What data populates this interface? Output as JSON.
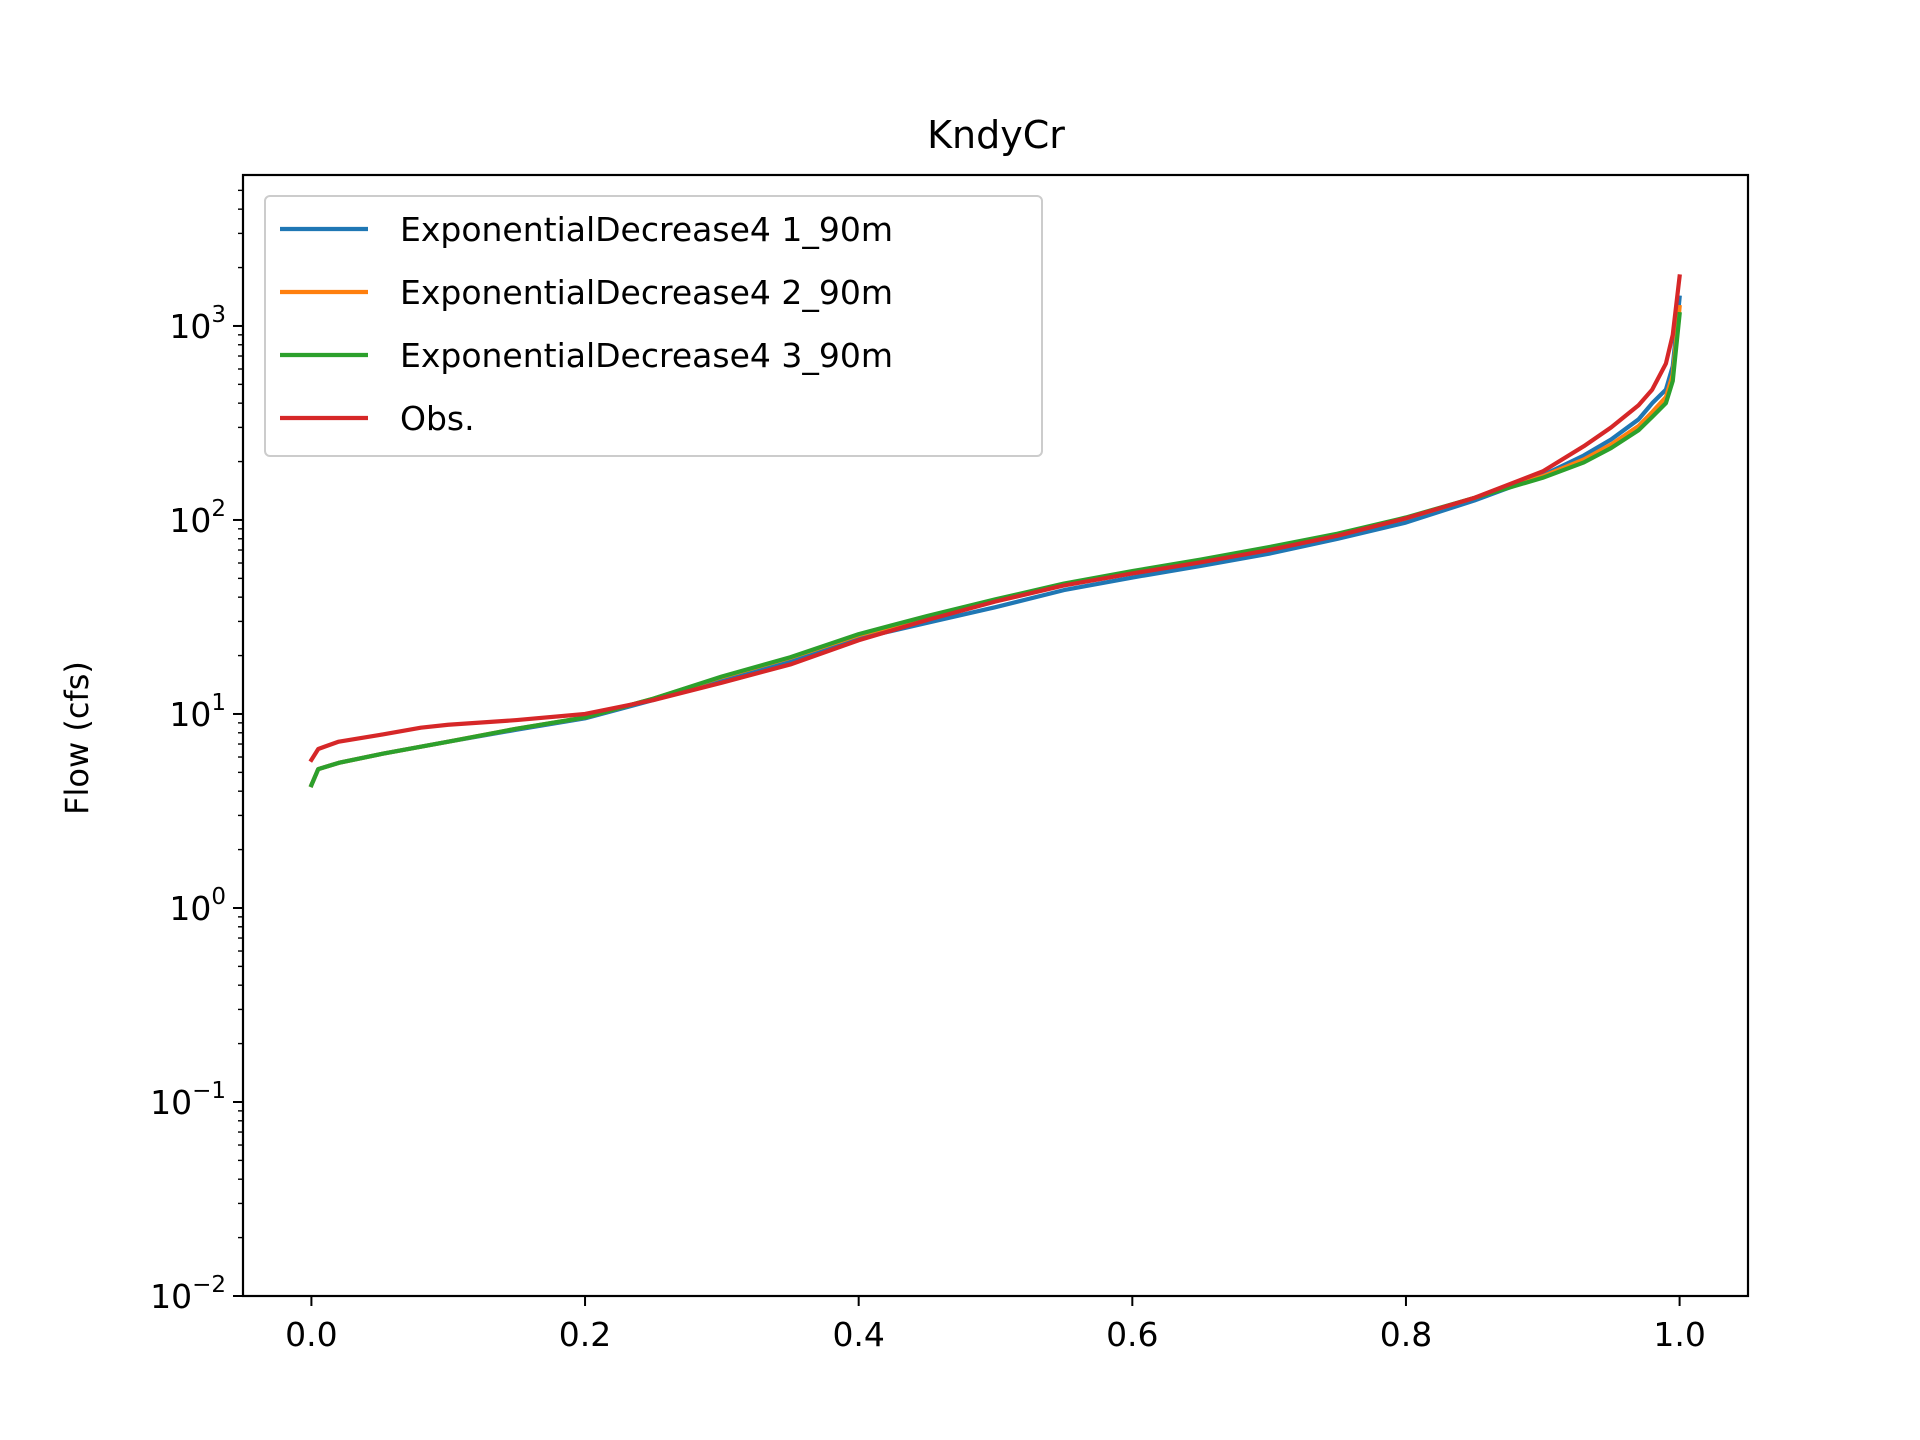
{
  "chart_data": {
    "type": "line",
    "title": "KndyCr",
    "xlabel": "",
    "ylabel": "Flow (cfs)",
    "y_scale": "log",
    "xlim": [
      -0.05,
      1.05
    ],
    "ylim": [
      0.01,
      6000
    ],
    "grid": false,
    "legend_position": "top-left",
    "x_ticks": [
      0.0,
      0.2,
      0.4,
      0.6,
      0.8,
      1.0
    ],
    "x_tick_labels": [
      "0.0",
      "0.2",
      "0.4",
      "0.6",
      "0.8",
      "1.0"
    ],
    "y_ticks": [
      0.01,
      0.1,
      1,
      10,
      100,
      1000
    ],
    "y_tick_labels": [
      {
        "base": "10",
        "exp": "−2"
      },
      {
        "base": "10",
        "exp": "−1"
      },
      {
        "base": "10",
        "exp": "0"
      },
      {
        "base": "10",
        "exp": "1"
      },
      {
        "base": "10",
        "exp": "2"
      },
      {
        "base": "10",
        "exp": "3"
      }
    ],
    "series": [
      {
        "name": "ExponentialDecrease4 1_90m",
        "color": "#1f77b4",
        "x": [
          0.0,
          0.005,
          0.02,
          0.05,
          0.1,
          0.15,
          0.2,
          0.25,
          0.3,
          0.35,
          0.4,
          0.45,
          0.5,
          0.55,
          0.6,
          0.65,
          0.7,
          0.75,
          0.8,
          0.85,
          0.9,
          0.93,
          0.95,
          0.97,
          0.98,
          0.99,
          0.995,
          1.0
        ],
        "y": [
          4.3,
          5.2,
          5.6,
          6.2,
          7.2,
          8.3,
          9.5,
          11.8,
          15.2,
          18.8,
          24.5,
          29.5,
          35.5,
          43.5,
          50.5,
          58.0,
          67.0,
          80.0,
          97.0,
          126.0,
          170.0,
          215.0,
          260.0,
          330.0,
          400.0,
          470.0,
          620.0,
          1400.0
        ]
      },
      {
        "name": "ExponentialDecrease4 2_90m",
        "color": "#ff7f0e",
        "x": [
          0.0,
          0.005,
          0.02,
          0.05,
          0.1,
          0.15,
          0.2,
          0.25,
          0.3,
          0.35,
          0.4,
          0.45,
          0.5,
          0.55,
          0.6,
          0.65,
          0.7,
          0.75,
          0.8,
          0.85,
          0.9,
          0.93,
          0.95,
          0.97,
          0.98,
          0.99,
          0.995,
          1.0
        ],
        "y": [
          4.3,
          5.2,
          5.6,
          6.2,
          7.2,
          8.4,
          9.6,
          12.0,
          15.5,
          19.5,
          25.5,
          31.5,
          38.5,
          46.5,
          53.5,
          61.5,
          71.0,
          84.0,
          102.0,
          130.0,
          168.0,
          205.0,
          245.0,
          305.0,
          360.0,
          430.0,
          560.0,
          1250.0
        ]
      },
      {
        "name": "ExponentialDecrease4 3_90m",
        "color": "#2ca02c",
        "x": [
          0.0,
          0.005,
          0.02,
          0.05,
          0.1,
          0.15,
          0.2,
          0.25,
          0.3,
          0.35,
          0.4,
          0.45,
          0.5,
          0.55,
          0.6,
          0.65,
          0.7,
          0.75,
          0.8,
          0.85,
          0.9,
          0.93,
          0.95,
          0.97,
          0.98,
          0.99,
          0.995,
          1.0
        ],
        "y": [
          4.3,
          5.2,
          5.6,
          6.2,
          7.2,
          8.4,
          9.6,
          12.0,
          15.6,
          19.6,
          25.8,
          32.0,
          39.0,
          47.0,
          54.5,
          62.5,
          72.5,
          85.0,
          103.0,
          130.0,
          165.0,
          198.0,
          235.0,
          290.0,
          340.0,
          400.0,
          520.0,
          1150.0
        ]
      },
      {
        "name": "Obs.",
        "color": "#d62728",
        "x": [
          0.0,
          0.005,
          0.01,
          0.02,
          0.05,
          0.08,
          0.1,
          0.15,
          0.2,
          0.25,
          0.3,
          0.35,
          0.4,
          0.45,
          0.5,
          0.55,
          0.6,
          0.65,
          0.7,
          0.75,
          0.8,
          0.85,
          0.9,
          0.93,
          0.95,
          0.97,
          0.98,
          0.99,
          0.995,
          1.0
        ],
        "y": [
          5.8,
          6.6,
          6.8,
          7.2,
          7.8,
          8.5,
          8.8,
          9.3,
          10.0,
          11.8,
          14.5,
          18.0,
          24.0,
          30.5,
          38.0,
          46.0,
          53.0,
          60.5,
          70.0,
          83.0,
          102.0,
          130.0,
          178.0,
          240.0,
          300.0,
          390.0,
          470.0,
          640.0,
          900.0,
          1800.0
        ]
      }
    ]
  }
}
